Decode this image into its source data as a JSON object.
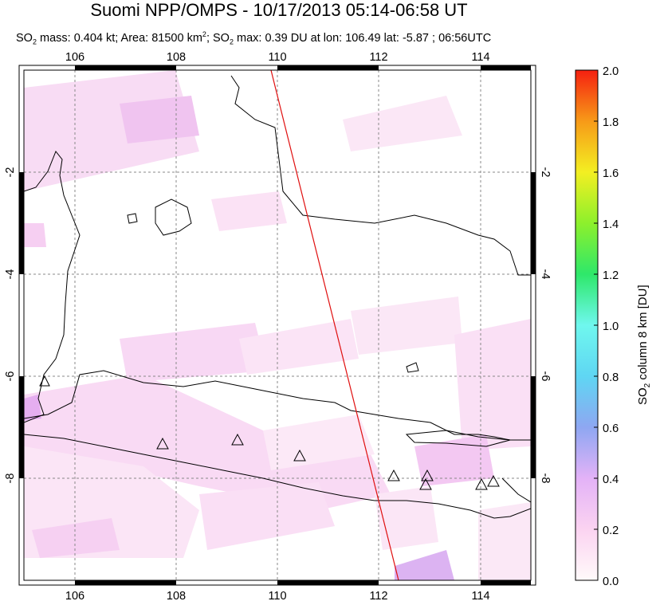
{
  "title": "Suomi NPP/OMPS - 10/17/2013 05:14-06:58 UT",
  "subtitle": {
    "so2_prefix": "SO",
    "so2_sub": "2",
    "mass_text": " mass: 0.404 kt; Area: 81500 km",
    "area_sup": "2",
    "max_prefix": "; SO",
    "max_sub": "2",
    "max_text": " max: 0.39 DU at lon: 106.49 lat: -5.87 ; 06:56UTC"
  },
  "map": {
    "lon_range": [
      105,
      115
    ],
    "lat_range": [
      -10,
      0
    ],
    "lon_ticks": [
      "106",
      "108",
      "110",
      "112",
      "114"
    ],
    "lat_ticks": [
      "-2",
      "-4",
      "-6",
      "-8"
    ],
    "orbit_line_color": "#e01010",
    "volcano_count": 9
  },
  "colorbar": {
    "title_prefix": "SO",
    "title_sub": "2",
    "title_suffix": " column 8 km [DU]",
    "ticks": [
      "2.0",
      "1.8",
      "1.6",
      "1.4",
      "1.2",
      "1.0",
      "0.8",
      "0.6",
      "0.4",
      "0.2",
      "0.0"
    ],
    "range": [
      0,
      2
    ]
  }
}
